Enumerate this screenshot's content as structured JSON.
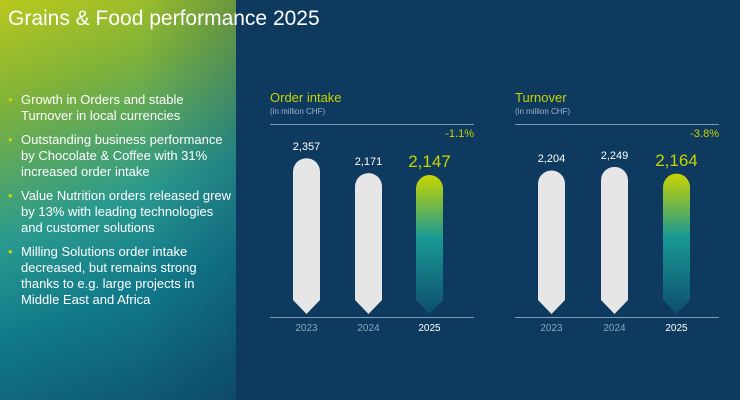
{
  "title": "Grains & Food performance 2025",
  "bullets": [
    "Growth in Orders and stable Turnover in local currencies",
    "Outstanding business performance by Chocolate & Coffee with 31% increased order intake",
    "Value Nutrition orders released grew by 13% with leading technologies and customer solutions",
    "Milling Solutions order intake decreased, but remains strong thanks to e.g. large projects in Middle East and Africa"
  ],
  "colors": {
    "accent": "#c8d400",
    "background": "#0d3a5e",
    "bar": "#e6e6e6"
  },
  "chart_data": [
    {
      "type": "bar",
      "title": "Order intake",
      "subtitle": "(in million CHF)",
      "categories": [
        "2023",
        "2024",
        "2025"
      ],
      "values": [
        2357,
        2171,
        2147
      ],
      "value_labels": [
        "2,357",
        "2,171",
        "2,147"
      ],
      "change": "-1.1%"
    },
    {
      "type": "bar",
      "title": "Turnover",
      "subtitle": "(in million CHF)",
      "categories": [
        "2023",
        "2024",
        "2025"
      ],
      "values": [
        2204,
        2249,
        2164
      ],
      "value_labels": [
        "2,204",
        "2,249",
        "2,164"
      ],
      "change": "-3.8%"
    }
  ]
}
